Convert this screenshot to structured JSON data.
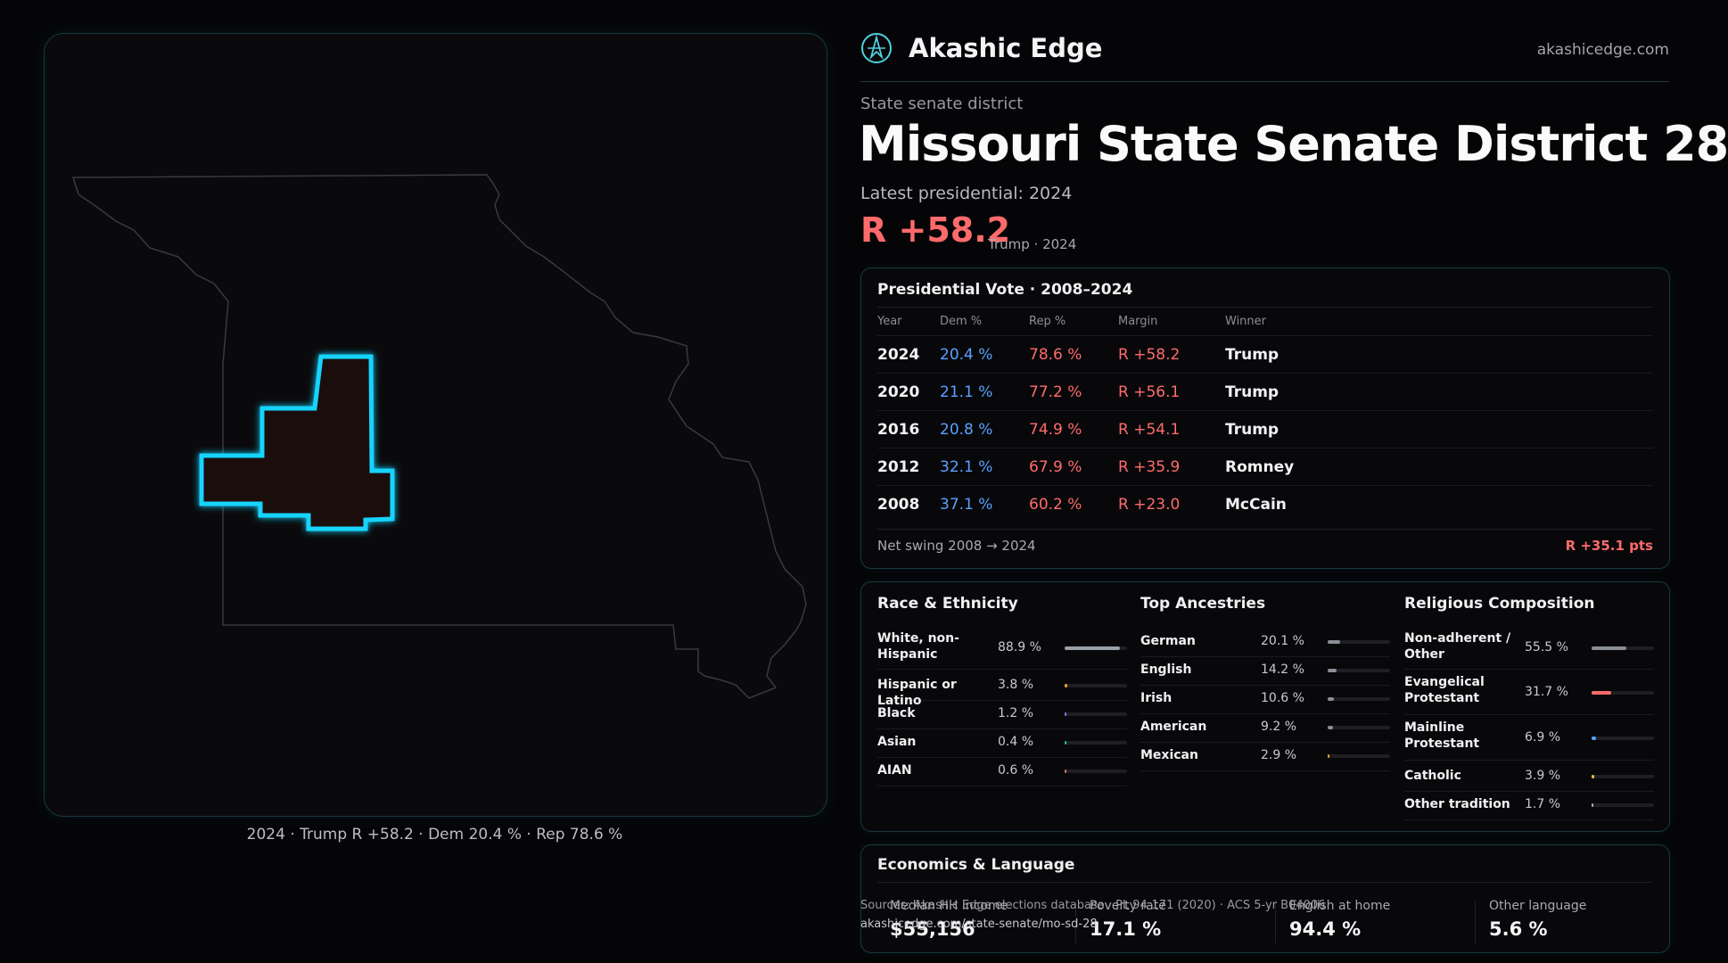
{
  "map": {
    "caption": "2024 · Trump R +58.2 · Dem 20.4 % · Rep 78.6 %",
    "highlight_color": "#19d4ff",
    "outline_color": "#3a3a3e"
  },
  "brand": {
    "name": "Akashic Edge",
    "url": "akashicedge.com",
    "logo_icon": "compass-logo-icon"
  },
  "header": {
    "district_type": "State senate district",
    "title": "Missouri State Senate District 28",
    "latest_label": "Latest presidential: 2024",
    "headline_margin": "R +58.2",
    "headline_note": "Trump · 2024"
  },
  "vote_table": {
    "title": "Presidential Vote · 2008–2024",
    "columns": [
      "Year",
      "Dem %",
      "Rep %",
      "Margin",
      "Winner"
    ],
    "rows": [
      {
        "year": "2024",
        "dem": "20.4 %",
        "rep": "78.6 %",
        "margin": "R +58.2",
        "winner": "Trump"
      },
      {
        "year": "2020",
        "dem": "21.1 %",
        "rep": "77.2 %",
        "margin": "R +56.1",
        "winner": "Trump"
      },
      {
        "year": "2016",
        "dem": "20.8 %",
        "rep": "74.9 %",
        "margin": "R +54.1",
        "winner": "Trump"
      },
      {
        "year": "2012",
        "dem": "32.1 %",
        "rep": "67.9 %",
        "margin": "R +35.9",
        "winner": "Romney"
      },
      {
        "year": "2008",
        "dem": "37.1 %",
        "rep": "60.2 %",
        "margin": "R +23.0",
        "winner": "McCain"
      }
    ],
    "swing_label": "Net swing 2008 → 2024",
    "swing_value": "R +35.1 pts"
  },
  "race": {
    "title": "Race & Ethnicity",
    "items": [
      {
        "label": "White, non-Hispanic",
        "pct": "88.9 %",
        "value": 88.9,
        "color": "#9aa0a8"
      },
      {
        "label": "Hispanic or Latino",
        "pct": "3.8 %",
        "value": 3.8,
        "color": "#f0a030"
      },
      {
        "label": "Black",
        "pct": "1.2 %",
        "value": 1.2,
        "color": "#7a7cff"
      },
      {
        "label": "Asian",
        "pct": "0.4 %",
        "value": 0.4,
        "color": "#20c0a0"
      },
      {
        "label": "AIAN",
        "pct": "0.6 %",
        "value": 0.6,
        "color": "#e07050"
      }
    ]
  },
  "ancestry": {
    "title": "Top Ancestries",
    "items": [
      {
        "label": "German",
        "pct": "20.1 %",
        "value": 20.1,
        "color": "#8a8f96"
      },
      {
        "label": "English",
        "pct": "14.2 %",
        "value": 14.2,
        "color": "#8a8f96"
      },
      {
        "label": "Irish",
        "pct": "10.6 %",
        "value": 10.6,
        "color": "#8a8f96"
      },
      {
        "label": "American",
        "pct": "9.2 %",
        "value": 9.2,
        "color": "#8a8f96"
      },
      {
        "label": "Mexican",
        "pct": "2.9 %",
        "value": 2.9,
        "color": "#f0a030"
      }
    ]
  },
  "religion": {
    "title": "Religious Composition",
    "items": [
      {
        "label": "Non-adherent / Other",
        "pct": "55.5 %",
        "value": 55.5,
        "color": "#8a8f96"
      },
      {
        "label": "Evangelical Protestant",
        "pct": "31.7 %",
        "value": 31.7,
        "color": "#ff6b6b"
      },
      {
        "label": "Mainline Protestant",
        "pct": "6.9 %",
        "value": 6.9,
        "color": "#5aa0ff"
      },
      {
        "label": "Catholic",
        "pct": "3.9 %",
        "value": 3.9,
        "color": "#f0c030"
      },
      {
        "label": "Other tradition",
        "pct": "1.7 %",
        "value": 1.7,
        "color": "#b0b0b5"
      }
    ]
  },
  "economics": {
    "title": "Economics & Language",
    "stats": [
      {
        "label": "Median HH income",
        "value": "$55,156"
      },
      {
        "label": "Poverty rate",
        "value": "17.1 %"
      },
      {
        "label": "English at home",
        "value": "94.4 %"
      },
      {
        "label": "Other language",
        "value": "5.6 %"
      }
    ]
  },
  "source": {
    "text": "Sources: Akashic Edge elections database · PL 94-171 (2020) · ACS 5-yr B04006",
    "url": "akashicedge.com/state-senate/mo-sd-28"
  }
}
